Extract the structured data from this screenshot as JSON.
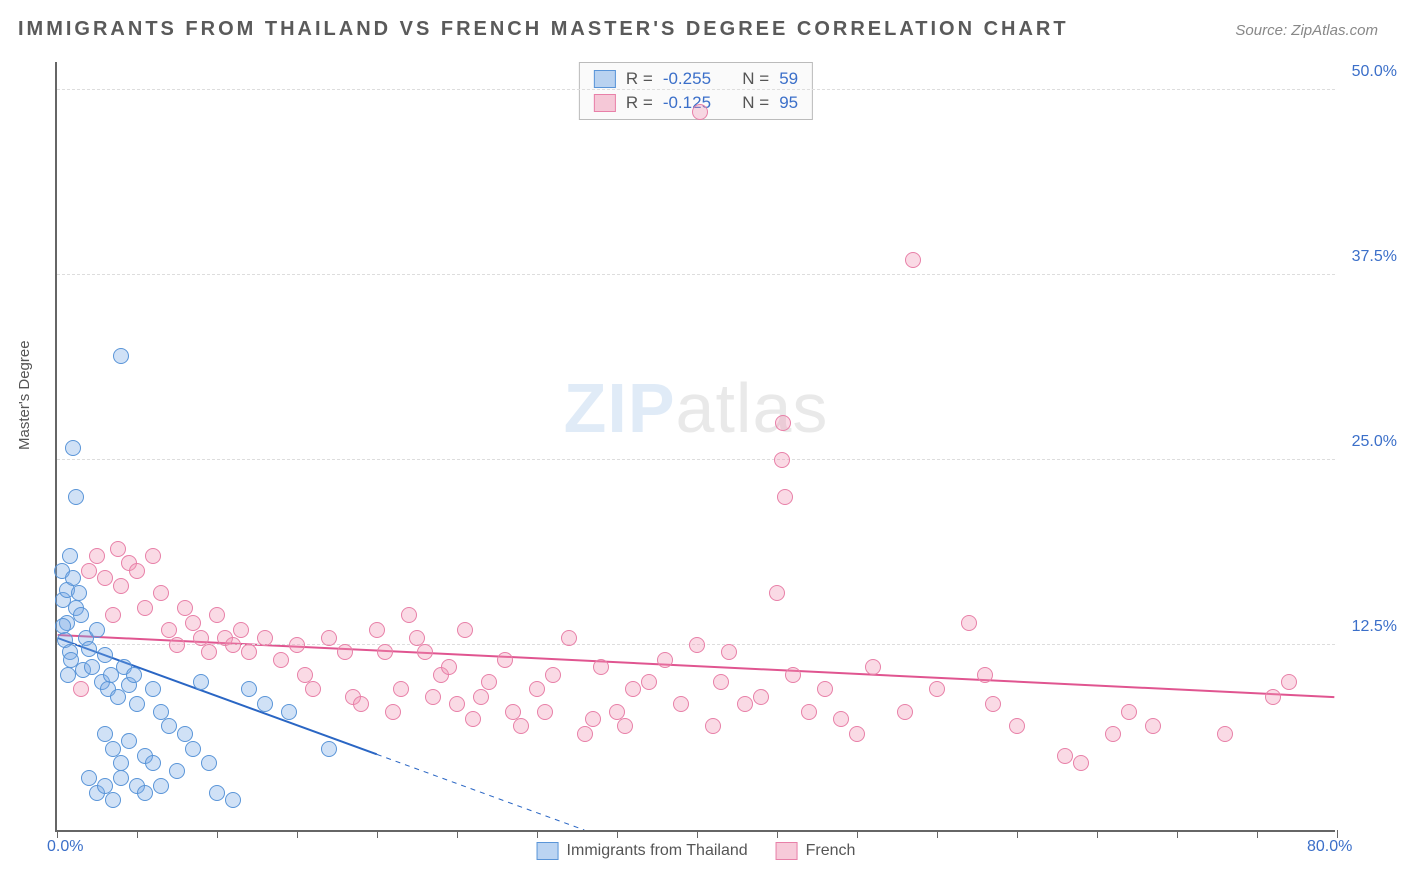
{
  "title": "IMMIGRANTS FROM THAILAND VS FRENCH MASTER'S DEGREE CORRELATION CHART",
  "source_prefix": "Source: ",
  "source_name": "ZipAtlas.com",
  "ylabel": "Master's Degree",
  "watermark_bold": "ZIP",
  "watermark_rest": "atlas",
  "chart": {
    "type": "scatter",
    "background_color": "#ffffff",
    "xlim": [
      0,
      80
    ],
    "ylim": [
      0,
      52
    ],
    "xtick_positions": [
      0,
      5,
      10,
      15,
      20,
      25,
      30,
      35,
      40,
      45,
      50,
      55,
      60,
      65,
      70,
      75,
      80
    ],
    "xtick_labels": {
      "0": "0.0%",
      "80": "80.0%"
    },
    "ytick_positions": [
      12.5,
      25,
      37.5,
      50
    ],
    "ytick_labels": [
      "12.5%",
      "25.0%",
      "37.5%",
      "50.0%"
    ],
    "grid_color": "#dddddd",
    "axis_color": "#666666",
    "title_fontsize": 20,
    "label_fontsize": 15,
    "tick_fontsize": 16,
    "tick_color": "#3b6fc9",
    "marker_radius": 8,
    "series": [
      {
        "name": "Immigrants from Thailand",
        "color_fill": "rgba(120,170,230,0.35)",
        "color_stroke": "#5a95d8",
        "R": -0.255,
        "N": 59,
        "trend": {
          "x1": 0,
          "y1": 13.0,
          "x2": 33,
          "y2": 0,
          "color": "#2a66c4",
          "width": 2,
          "dash_after_x": 20
        },
        "points": [
          [
            0.3,
            17.5
          ],
          [
            0.4,
            15.5
          ],
          [
            0.6,
            16.2
          ],
          [
            0.8,
            18.5
          ],
          [
            0.6,
            14.0
          ],
          [
            0.5,
            12.8
          ],
          [
            0.4,
            13.8
          ],
          [
            1.0,
            17.0
          ],
          [
            1.2,
            15.0
          ],
          [
            0.8,
            12.0
          ],
          [
            0.7,
            10.5
          ],
          [
            0.9,
            11.5
          ],
          [
            1.0,
            25.8
          ],
          [
            1.2,
            22.5
          ],
          [
            1.4,
            16.0
          ],
          [
            1.5,
            14.5
          ],
          [
            1.8,
            13.0
          ],
          [
            1.6,
            10.8
          ],
          [
            2.0,
            12.2
          ],
          [
            2.2,
            11.0
          ],
          [
            2.5,
            13.5
          ],
          [
            2.8,
            10.0
          ],
          [
            3.0,
            11.8
          ],
          [
            3.2,
            9.5
          ],
          [
            3.4,
            10.5
          ],
          [
            3.8,
            9.0
          ],
          [
            4.0,
            32.0
          ],
          [
            4.2,
            11.0
          ],
          [
            4.5,
            9.8
          ],
          [
            4.8,
            10.5
          ],
          [
            5.0,
            8.5
          ],
          [
            3.0,
            6.5
          ],
          [
            3.5,
            5.5
          ],
          [
            4.0,
            4.5
          ],
          [
            4.5,
            6.0
          ],
          [
            5.5,
            5.0
          ],
          [
            6.0,
            9.5
          ],
          [
            6.5,
            8.0
          ],
          [
            7.0,
            7.0
          ],
          [
            7.5,
            4.0
          ],
          [
            8.0,
            6.5
          ],
          [
            2.0,
            3.5
          ],
          [
            2.5,
            2.5
          ],
          [
            3.0,
            3.0
          ],
          [
            3.5,
            2.0
          ],
          [
            4.0,
            3.5
          ],
          [
            5.0,
            3.0
          ],
          [
            5.5,
            2.5
          ],
          [
            6.0,
            4.5
          ],
          [
            6.5,
            3.0
          ],
          [
            8.5,
            5.5
          ],
          [
            9.0,
            10.0
          ],
          [
            9.5,
            4.5
          ],
          [
            10.0,
            2.5
          ],
          [
            11.0,
            2.0
          ],
          [
            12.0,
            9.5
          ],
          [
            13.0,
            8.5
          ],
          [
            14.5,
            8.0
          ],
          [
            17.0,
            5.5
          ]
        ]
      },
      {
        "name": "French",
        "color_fill": "rgba(240,150,180,0.35)",
        "color_stroke": "#e880a8",
        "R": -0.125,
        "N": 95,
        "trend": {
          "x1": 0,
          "y1": 13.2,
          "x2": 80,
          "y2": 9.0,
          "color": "#e05590",
          "width": 2
        },
        "points": [
          [
            1.5,
            9.5
          ],
          [
            2.0,
            17.5
          ],
          [
            2.5,
            18.5
          ],
          [
            3.0,
            17.0
          ],
          [
            3.5,
            14.5
          ],
          [
            3.8,
            19.0
          ],
          [
            4.0,
            16.5
          ],
          [
            4.5,
            18.0
          ],
          [
            5.0,
            17.5
          ],
          [
            5.5,
            15.0
          ],
          [
            6.0,
            18.5
          ],
          [
            6.5,
            16.0
          ],
          [
            7.0,
            13.5
          ],
          [
            7.5,
            12.5
          ],
          [
            8.0,
            15.0
          ],
          [
            8.5,
            14.0
          ],
          [
            9.0,
            13.0
          ],
          [
            9.5,
            12.0
          ],
          [
            10.0,
            14.5
          ],
          [
            10.5,
            13.0
          ],
          [
            11.0,
            12.5
          ],
          [
            11.5,
            13.5
          ],
          [
            12.0,
            12.0
          ],
          [
            13.0,
            13.0
          ],
          [
            14.0,
            11.5
          ],
          [
            15.0,
            12.5
          ],
          [
            15.5,
            10.5
          ],
          [
            16.0,
            9.5
          ],
          [
            17.0,
            13.0
          ],
          [
            18.0,
            12.0
          ],
          [
            18.5,
            9.0
          ],
          [
            19.0,
            8.5
          ],
          [
            20.0,
            13.5
          ],
          [
            20.5,
            12.0
          ],
          [
            21.0,
            8.0
          ],
          [
            21.5,
            9.5
          ],
          [
            22.0,
            14.5
          ],
          [
            22.5,
            13.0
          ],
          [
            23.0,
            12.0
          ],
          [
            23.5,
            9.0
          ],
          [
            24.0,
            10.5
          ],
          [
            24.5,
            11.0
          ],
          [
            25.0,
            8.5
          ],
          [
            25.5,
            13.5
          ],
          [
            26.0,
            7.5
          ],
          [
            26.5,
            9.0
          ],
          [
            27.0,
            10.0
          ],
          [
            28.0,
            11.5
          ],
          [
            28.5,
            8.0
          ],
          [
            29.0,
            7.0
          ],
          [
            30.0,
            9.5
          ],
          [
            30.5,
            8.0
          ],
          [
            31.0,
            10.5
          ],
          [
            32.0,
            13.0
          ],
          [
            33.0,
            6.5
          ],
          [
            33.5,
            7.5
          ],
          [
            34.0,
            11.0
          ],
          [
            35.0,
            8.0
          ],
          [
            35.5,
            7.0
          ],
          [
            36.0,
            9.5
          ],
          [
            37.0,
            10.0
          ],
          [
            38.0,
            11.5
          ],
          [
            39.0,
            8.5
          ],
          [
            40.0,
            12.5
          ],
          [
            40.2,
            48.5
          ],
          [
            41.0,
            7.0
          ],
          [
            41.5,
            10.0
          ],
          [
            42.0,
            12.0
          ],
          [
            43.0,
            8.5
          ],
          [
            44.0,
            9.0
          ],
          [
            45.0,
            16.0
          ],
          [
            45.3,
            25.0
          ],
          [
            45.4,
            27.5
          ],
          [
            45.5,
            22.5
          ],
          [
            46.0,
            10.5
          ],
          [
            47.0,
            8.0
          ],
          [
            48.0,
            9.5
          ],
          [
            49.0,
            7.5
          ],
          [
            50.0,
            6.5
          ],
          [
            51.0,
            11.0
          ],
          [
            53.0,
            8.0
          ],
          [
            53.5,
            38.5
          ],
          [
            55.0,
            9.5
          ],
          [
            57.0,
            14.0
          ],
          [
            58.0,
            10.5
          ],
          [
            58.5,
            8.5
          ],
          [
            60.0,
            7.0
          ],
          [
            63.0,
            5.0
          ],
          [
            64.0,
            4.5
          ],
          [
            66.0,
            6.5
          ],
          [
            67.0,
            8.0
          ],
          [
            68.5,
            7.0
          ],
          [
            73.0,
            6.5
          ],
          [
            76.0,
            9.0
          ],
          [
            77.0,
            10.0
          ]
        ]
      }
    ],
    "legend_items": [
      "Immigrants from Thailand",
      "French"
    ]
  }
}
